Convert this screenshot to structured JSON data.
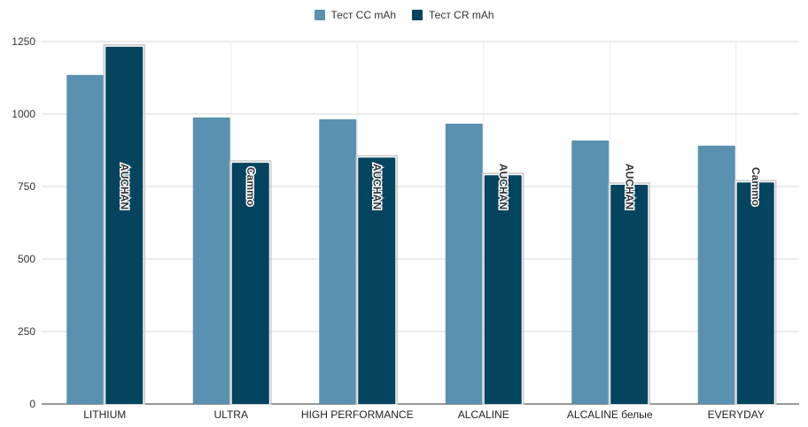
{
  "chart_data": {
    "type": "bar",
    "categories": [
      "LITHIUM",
      "ULTRA",
      "HIGH PERFORMANCE",
      "ALCALINE",
      "ALCALINE белые",
      "EVERYDAY"
    ],
    "series": [
      {
        "name": "Тест CC mAh",
        "color": "#5a91b0",
        "values": [
          1135,
          988,
          982,
          967,
          909,
          891
        ]
      },
      {
        "name": "Тест CR mAh",
        "color": "#04445f",
        "values": [
          1232,
          832,
          850,
          789,
          756,
          764
        ],
        "labels": [
          "AUCHAN",
          "Cammo",
          "AUCHAN",
          "AUCHAN",
          "AUCHAN",
          "Cammo"
        ]
      }
    ],
    "yticks": [
      0,
      250,
      500,
      750,
      1000,
      1250
    ],
    "ylim": [
      0,
      1250
    ],
    "grid": true,
    "legend_position": "top-center"
  }
}
